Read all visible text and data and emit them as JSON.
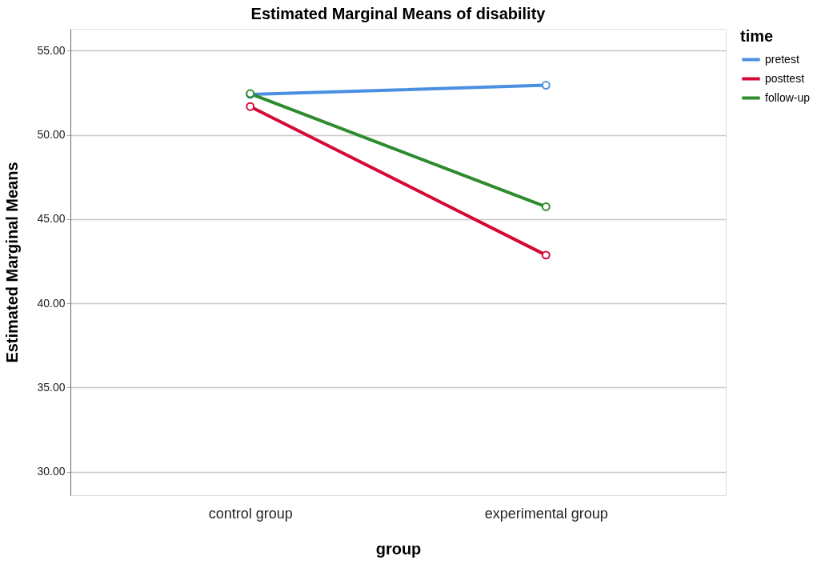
{
  "chart_data": {
    "type": "line",
    "title": "Estimated Marginal Means of disability",
    "xlabel": "group",
    "ylabel": "Estimated Marginal Means",
    "legend_title": "time",
    "categories": [
      "control group",
      "experimental group"
    ],
    "series": [
      {
        "name": "pretest",
        "color": "#4a90e2",
        "values": [
          52.4,
          52.95
        ]
      },
      {
        "name": "posttest",
        "color": "#d6083b",
        "values": [
          51.68,
          42.86
        ]
      },
      {
        "name": "follow-up",
        "color": "#2e8b2e",
        "values": [
          52.45,
          45.73
        ]
      }
    ],
    "ylim": [
      28.6,
      56.3
    ],
    "yticks": [
      {
        "value": 30,
        "label": "30.00"
      },
      {
        "value": 35,
        "label": "35.00"
      },
      {
        "value": 40,
        "label": "40.00"
      },
      {
        "value": 45,
        "label": "45.00"
      },
      {
        "value": 50,
        "label": "50.00"
      },
      {
        "value": 55,
        "label": "55.00"
      }
    ],
    "grid": "y",
    "legend": "top right",
    "marker": "circle",
    "line_style": "solid"
  }
}
